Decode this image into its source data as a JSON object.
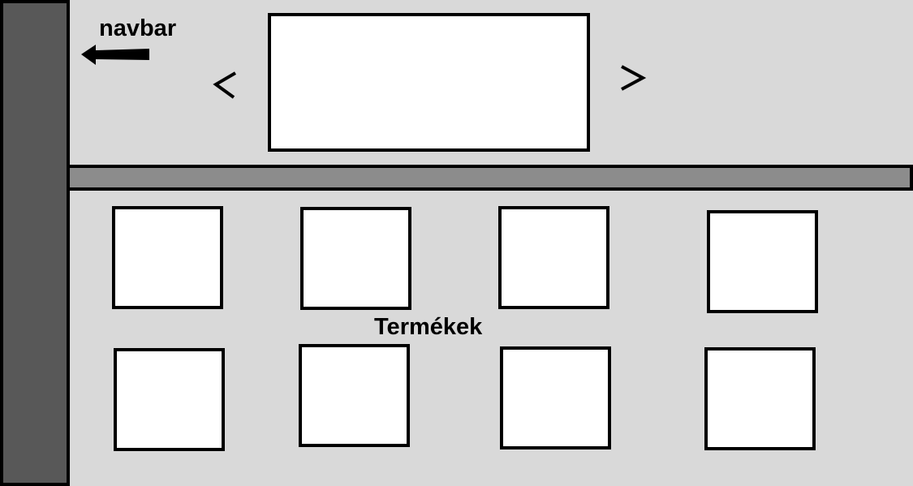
{
  "navbar": {
    "label": "navbar"
  },
  "products": {
    "label": "Termékek",
    "tiles": [
      "",
      "",
      "",
      "",
      "",
      "",
      "",
      ""
    ]
  }
}
